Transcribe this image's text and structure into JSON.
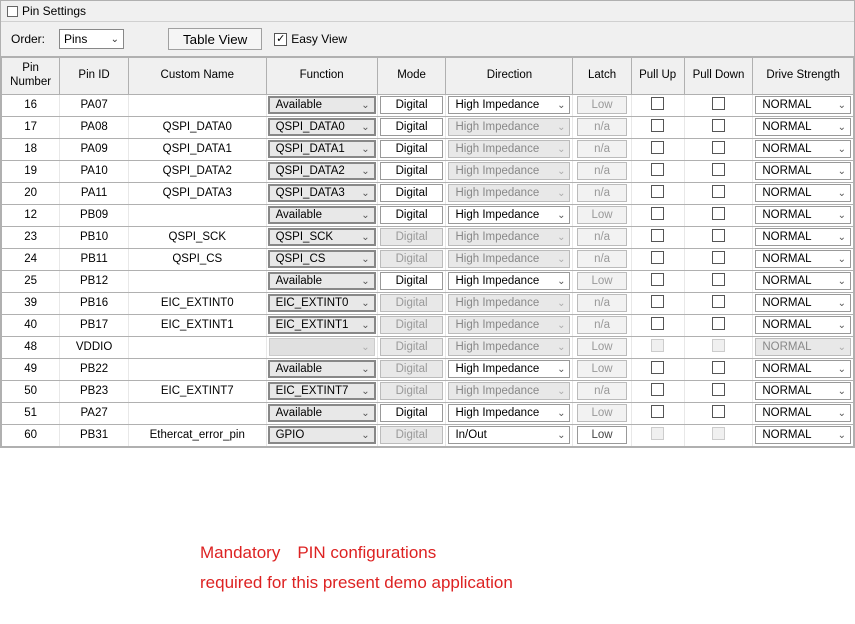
{
  "window": {
    "title": "Pin Settings"
  },
  "toolbar": {
    "order_label": "Order:",
    "order_value": "Pins",
    "table_view": "Table View",
    "easy_view_label": "Easy View",
    "easy_view_checked": true
  },
  "columns": {
    "pin_number": "Pin Number",
    "pin_id": "Pin ID",
    "custom_name": "Custom Name",
    "function": "Function",
    "mode": "Mode",
    "direction": "Direction",
    "latch": "Latch",
    "pull_up": "Pull Up",
    "pull_down": "Pull Down",
    "drive_strength": "Drive Strength"
  },
  "rows": [
    {
      "num": "16",
      "id": "PA07",
      "custom": "",
      "func": "Available",
      "func_sel": true,
      "mode": "Digital",
      "mode_dis": false,
      "dir": "High Impedance",
      "dir_dis": false,
      "latch": "Low",
      "latch_dis": true,
      "pu_dis": false,
      "pd_dis": false,
      "drive": "NORMAL",
      "drive_dis": false
    },
    {
      "num": "17",
      "id": "PA08",
      "custom": "QSPI_DATA0",
      "func": "QSPI_DATA0",
      "func_sel": true,
      "mode": "Digital",
      "mode_dis": false,
      "dir": "High Impedance",
      "dir_dis": true,
      "latch": "n/a",
      "latch_dis": true,
      "pu_dis": false,
      "pd_dis": false,
      "drive": "NORMAL",
      "drive_dis": false
    },
    {
      "num": "18",
      "id": "PA09",
      "custom": "QSPI_DATA1",
      "func": "QSPI_DATA1",
      "func_sel": true,
      "mode": "Digital",
      "mode_dis": false,
      "dir": "High Impedance",
      "dir_dis": true,
      "latch": "n/a",
      "latch_dis": true,
      "pu_dis": false,
      "pd_dis": false,
      "drive": "NORMAL",
      "drive_dis": false
    },
    {
      "num": "19",
      "id": "PA10",
      "custom": "QSPI_DATA2",
      "func": "QSPI_DATA2",
      "func_sel": true,
      "mode": "Digital",
      "mode_dis": false,
      "dir": "High Impedance",
      "dir_dis": true,
      "latch": "n/a",
      "latch_dis": true,
      "pu_dis": false,
      "pd_dis": false,
      "drive": "NORMAL",
      "drive_dis": false
    },
    {
      "num": "20",
      "id": "PA11",
      "custom": "QSPI_DATA3",
      "func": "QSPI_DATA3",
      "func_sel": true,
      "mode": "Digital",
      "mode_dis": false,
      "dir": "High Impedance",
      "dir_dis": true,
      "latch": "n/a",
      "latch_dis": true,
      "pu_dis": false,
      "pd_dis": false,
      "drive": "NORMAL",
      "drive_dis": false
    },
    {
      "num": "12",
      "id": "PB09",
      "custom": "",
      "func": "Available",
      "func_sel": true,
      "mode": "Digital",
      "mode_dis": false,
      "dir": "High Impedance",
      "dir_dis": false,
      "latch": "Low",
      "latch_dis": true,
      "pu_dis": false,
      "pd_dis": false,
      "drive": "NORMAL",
      "drive_dis": false
    },
    {
      "num": "23",
      "id": "PB10",
      "custom": "QSPI_SCK",
      "func": "QSPI_SCK",
      "func_sel": true,
      "mode": "Digital",
      "mode_dis": true,
      "dir": "High Impedance",
      "dir_dis": true,
      "latch": "n/a",
      "latch_dis": true,
      "pu_dis": false,
      "pd_dis": false,
      "drive": "NORMAL",
      "drive_dis": false
    },
    {
      "num": "24",
      "id": "PB11",
      "custom": "QSPI_CS",
      "func": "QSPI_CS",
      "func_sel": true,
      "mode": "Digital",
      "mode_dis": true,
      "dir": "High Impedance",
      "dir_dis": true,
      "latch": "n/a",
      "latch_dis": true,
      "pu_dis": false,
      "pd_dis": false,
      "drive": "NORMAL",
      "drive_dis": false
    },
    {
      "num": "25",
      "id": "PB12",
      "custom": "",
      "func": "Available",
      "func_sel": true,
      "mode": "Digital",
      "mode_dis": false,
      "dir": "High Impedance",
      "dir_dis": false,
      "latch": "Low",
      "latch_dis": true,
      "pu_dis": false,
      "pd_dis": false,
      "drive": "NORMAL",
      "drive_dis": false
    },
    {
      "num": "39",
      "id": "PB16",
      "custom": "EIC_EXTINT0",
      "func": "EIC_EXTINT0",
      "func_sel": true,
      "mode": "Digital",
      "mode_dis": true,
      "dir": "High Impedance",
      "dir_dis": true,
      "latch": "n/a",
      "latch_dis": true,
      "pu_dis": false,
      "pd_dis": false,
      "drive": "NORMAL",
      "drive_dis": false
    },
    {
      "num": "40",
      "id": "PB17",
      "custom": "EIC_EXTINT1",
      "func": "EIC_EXTINT1",
      "func_sel": true,
      "mode": "Digital",
      "mode_dis": true,
      "dir": "High Impedance",
      "dir_dis": true,
      "latch": "n/a",
      "latch_dis": true,
      "pu_dis": false,
      "pd_dis": false,
      "drive": "NORMAL",
      "drive_dis": false
    },
    {
      "num": "48",
      "id": "VDDIO",
      "custom": "",
      "func": "",
      "func_sel": false,
      "func_allgrey": true,
      "mode": "Digital",
      "mode_dis": true,
      "dir": "High Impedance",
      "dir_dis": true,
      "latch": "Low",
      "latch_dis": true,
      "pu_dis": true,
      "pd_dis": true,
      "drive": "NORMAL",
      "drive_dis": true
    },
    {
      "num": "49",
      "id": "PB22",
      "custom": "",
      "func": "Available",
      "func_sel": true,
      "mode": "Digital",
      "mode_dis": true,
      "dir": "High Impedance",
      "dir_dis": false,
      "latch": "Low",
      "latch_dis": true,
      "pu_dis": false,
      "pd_dis": false,
      "drive": "NORMAL",
      "drive_dis": false
    },
    {
      "num": "50",
      "id": "PB23",
      "custom": "EIC_EXTINT7",
      "func": "EIC_EXTINT7",
      "func_sel": true,
      "mode": "Digital",
      "mode_dis": true,
      "dir": "High Impedance",
      "dir_dis": true,
      "latch": "n/a",
      "latch_dis": true,
      "pu_dis": false,
      "pd_dis": false,
      "drive": "NORMAL",
      "drive_dis": false
    },
    {
      "num": "51",
      "id": "PA27",
      "custom": "",
      "func": "Available",
      "func_sel": true,
      "mode": "Digital",
      "mode_dis": false,
      "dir": "High Impedance",
      "dir_dis": false,
      "latch": "Low",
      "latch_dis": true,
      "pu_dis": false,
      "pd_dis": false,
      "drive": "NORMAL",
      "drive_dis": false
    },
    {
      "num": "60",
      "id": "PB31",
      "custom": "Ethercat_error_pin",
      "func": "GPIO",
      "func_sel": true,
      "mode": "Digital",
      "mode_dis": true,
      "dir": "In/Out",
      "dir_dis": false,
      "latch": "Low",
      "latch_dis": false,
      "pu_dis": true,
      "pd_dis": true,
      "drive": "NORMAL",
      "drive_dis": false
    }
  ],
  "caption": {
    "line1": "Mandatory PIN configurations",
    "line2": "required for this present demo application"
  },
  "colors": {
    "panel_bg": "#f0f0f0",
    "border": "#b0b0b0",
    "disabled_text": "#999999",
    "caption": "#d22"
  }
}
